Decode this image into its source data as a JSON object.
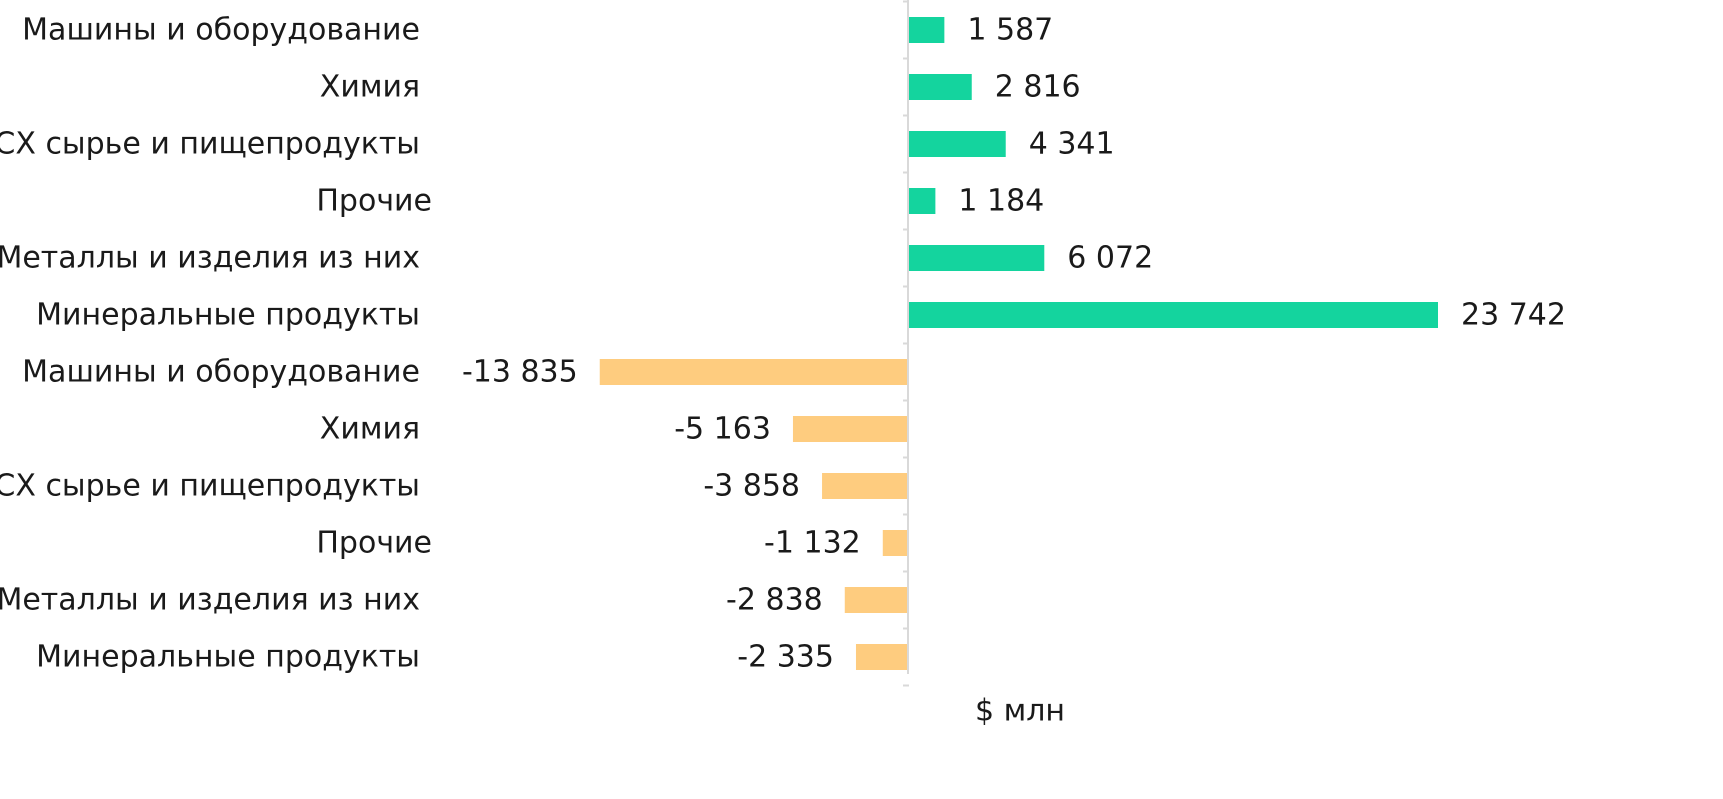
{
  "chart_data": {
    "type": "bar",
    "orientation": "horizontal",
    "categories": [
      "Машины и оборудование",
      "Химия",
      "СХ сырье и пищепродукты",
      "Прочие",
      "Металлы и изделия из них",
      "Минеральные продукты",
      "Машины и оборудование",
      "Химия",
      "СХ сырье и пищепродукты",
      "Прочие",
      "Металлы и изделия из них",
      "Минеральные продукты"
    ],
    "values": [
      1587,
      2816,
      4341,
      1184,
      6072,
      23742,
      -13835,
      -5163,
      -3858,
      -1132,
      -2838,
      -2335
    ],
    "value_labels": [
      "1 587",
      "2 816",
      "4 341",
      "1 184",
      "6 072",
      "23 742",
      "-13 835",
      "-5 163",
      "-3 858",
      "-1 132",
      "-2 838",
      "-2 335"
    ],
    "xlabel": "$ млн",
    "ylabel": "",
    "title": "",
    "xlim": [
      -14000,
      24000
    ],
    "grid": false,
    "legend": "none",
    "colors": {
      "positive": "#14d49e",
      "negative": "#fecc7f",
      "axis": "#d9d9d9"
    }
  }
}
